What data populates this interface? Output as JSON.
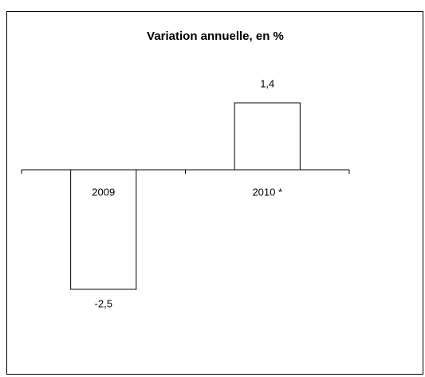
{
  "chart_data": {
    "type": "bar",
    "title": "Variation annuelle, en %",
    "categories": [
      "2009",
      "2010 *"
    ],
    "values": [
      -2.5,
      1.4
    ],
    "value_labels": [
      "-2,5",
      "1,4"
    ],
    "color": "#ffffff",
    "ylim": [
      -4,
      2.4
    ]
  }
}
